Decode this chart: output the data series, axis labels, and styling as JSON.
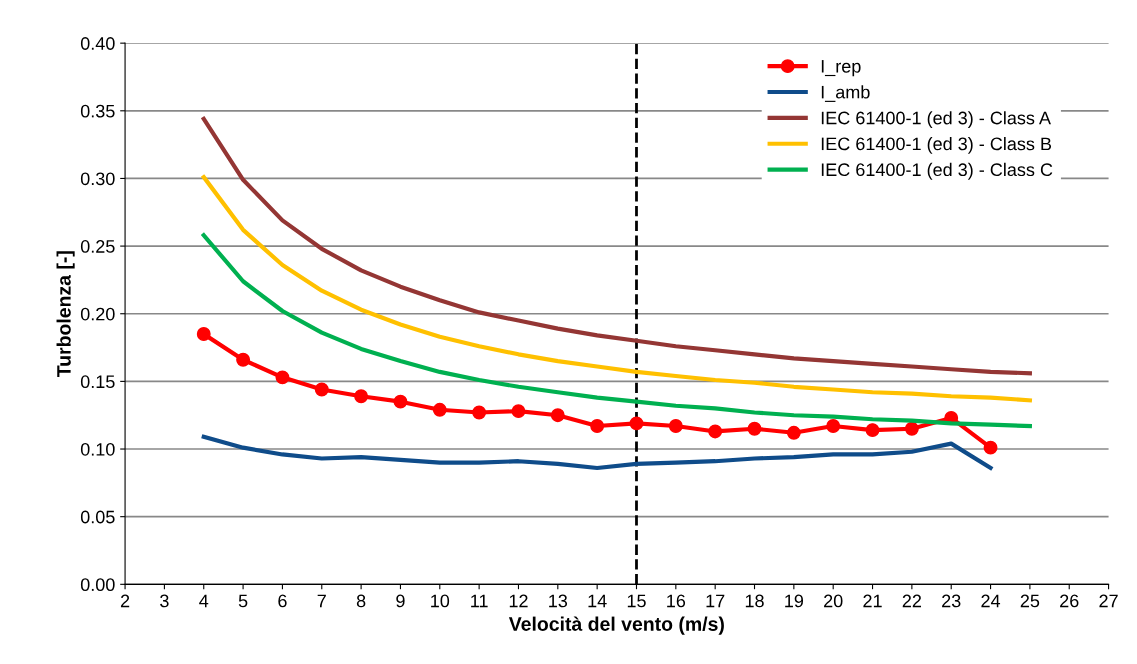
{
  "chart_data": {
    "type": "line",
    "xlabel": "Velocità del vento (m/s)",
    "ylabel": "Turbolenza [-]",
    "xlim": [
      2,
      27
    ],
    "xticks": [
      2,
      3,
      4,
      5,
      6,
      7,
      8,
      9,
      10,
      11,
      12,
      13,
      14,
      15,
      16,
      17,
      18,
      19,
      20,
      21,
      22,
      23,
      24,
      25,
      26,
      27
    ],
    "ylim": [
      0,
      0.4
    ],
    "yticks": [
      {
        "value": 0,
        "label": "0.00"
      },
      {
        "value": 0.05,
        "label": "0.05"
      },
      {
        "value": 0.1,
        "label": "0.10"
      },
      {
        "value": 0.15,
        "label": "0.15"
      },
      {
        "value": 0.2,
        "label": "0.20"
      },
      {
        "value": 0.25,
        "label": "0.25"
      },
      {
        "value": 0.3,
        "label": "0.30"
      },
      {
        "value": 0.35,
        "label": "0.35"
      },
      {
        "value": 0.4,
        "label": "0.40"
      }
    ],
    "grid": "y",
    "legend": "top right",
    "line_style": "solid",
    "series": [
      {
        "name": "I_rep",
        "color": "#ff0000",
        "marker": "circle",
        "x": [
          4,
          5,
          6,
          7,
          8,
          9,
          10,
          11,
          12,
          13,
          14,
          15,
          16,
          17,
          18,
          19,
          20,
          21,
          22,
          23,
          24
        ],
        "values": [
          0.185,
          0.166,
          0.153,
          0.144,
          0.139,
          0.135,
          0.129,
          0.127,
          0.128,
          0.125,
          0.117,
          0.119,
          0.117,
          0.113,
          0.115,
          0.112,
          0.117,
          0.114,
          0.115,
          0.123,
          0.101
        ]
      },
      {
        "name": "I_amb",
        "color": "#0f4c8a",
        "marker": "none",
        "x": [
          4,
          5,
          6,
          7,
          8,
          9,
          10,
          11,
          12,
          13,
          14,
          15,
          16,
          17,
          18,
          19,
          20,
          21,
          22,
          23,
          24
        ],
        "values": [
          0.109,
          0.101,
          0.096,
          0.093,
          0.094,
          0.092,
          0.09,
          0.09,
          0.091,
          0.089,
          0.086,
          0.089,
          0.09,
          0.091,
          0.093,
          0.094,
          0.096,
          0.096,
          0.098,
          0.104,
          0.086
        ]
      },
      {
        "name": "IEC 61400-1 (ed 3) - Class A",
        "color": "#943634",
        "marker": "none",
        "x": [
          4,
          5,
          6,
          7,
          8,
          9,
          10,
          11,
          12,
          13,
          14,
          15,
          16,
          17,
          18,
          19,
          20,
          21,
          22,
          23,
          24,
          25
        ],
        "values": [
          0.344,
          0.299,
          0.269,
          0.248,
          0.232,
          0.22,
          0.21,
          0.201,
          0.195,
          0.189,
          0.184,
          0.18,
          0.176,
          0.173,
          0.17,
          0.167,
          0.165,
          0.163,
          0.161,
          0.159,
          0.157,
          0.156
        ]
      },
      {
        "name": "IEC 61400-1 (ed 3) - Class B",
        "color": "#ffc000",
        "marker": "none",
        "x": [
          4,
          5,
          6,
          7,
          8,
          9,
          10,
          11,
          12,
          13,
          14,
          15,
          16,
          17,
          18,
          19,
          20,
          21,
          22,
          23,
          24,
          25
        ],
        "values": [
          0.301,
          0.262,
          0.236,
          0.217,
          0.203,
          0.192,
          0.183,
          0.176,
          0.17,
          0.165,
          0.161,
          0.157,
          0.154,
          0.151,
          0.149,
          0.146,
          0.144,
          0.142,
          0.141,
          0.139,
          0.138,
          0.136
        ]
      },
      {
        "name": "IEC 61400-1 (ed 3) - Class C",
        "color": "#00b050",
        "marker": "none",
        "x": [
          4,
          5,
          6,
          7,
          8,
          9,
          10,
          11,
          12,
          13,
          14,
          15,
          16,
          17,
          18,
          19,
          20,
          21,
          22,
          23,
          24,
          25
        ],
        "values": [
          0.258,
          0.224,
          0.202,
          0.186,
          0.174,
          0.165,
          0.157,
          0.151,
          0.146,
          0.142,
          0.138,
          0.135,
          0.132,
          0.13,
          0.127,
          0.125,
          0.124,
          0.122,
          0.121,
          0.119,
          0.118,
          0.117
        ]
      }
    ],
    "ref_lines": [
      {
        "axis": "x",
        "value": 15,
        "color": "#000000",
        "line_style": "dashed"
      }
    ]
  }
}
